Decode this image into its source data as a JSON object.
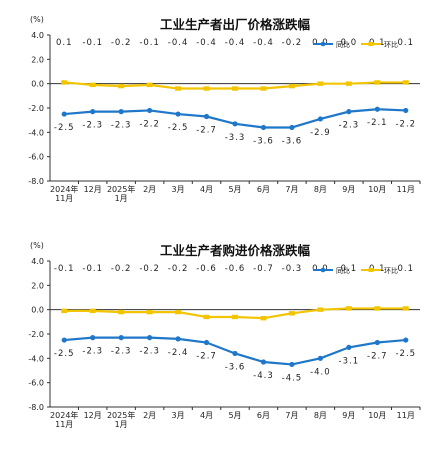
{
  "colors": {
    "yoy": "#1f77c9",
    "mom": "#f2c500",
    "axis": "#333333",
    "grid": "#cfcfcf"
  },
  "chart_data": [
    {
      "type": "line",
      "title": "工业生产者出厂价格涨跌幅",
      "unit": "(%)",
      "ylim": [
        -8.0,
        4.0
      ],
      "yticks": [
        "4.0",
        "2.0",
        "0.0",
        "-2.0",
        "-4.0",
        "-6.0",
        "-8.0"
      ],
      "categories": [
        [
          "2024年",
          "11月"
        ],
        [
          "12月"
        ],
        [
          "2025年",
          "1月"
        ],
        [
          "2月"
        ],
        [
          "3月"
        ],
        [
          "4月"
        ],
        [
          "5月"
        ],
        [
          "6月"
        ],
        [
          "7月"
        ],
        [
          "8月"
        ],
        [
          "9月"
        ],
        [
          "10月"
        ],
        [
          "11月"
        ]
      ],
      "legend": "top-right",
      "series": [
        {
          "name": "同比",
          "color": "#1f77c9",
          "values": [
            -2.5,
            -2.3,
            -2.3,
            -2.2,
            -2.5,
            -2.7,
            -3.3,
            -3.6,
            -3.6,
            -2.9,
            -2.3,
            -2.1,
            -2.2
          ],
          "labels": [
            "-2.5",
            "-2.3",
            "-2.3",
            "-2.2",
            "-2.5",
            "-2.7",
            "-3.3",
            "-3.6",
            "-3.6",
            "-2.9",
            "-2.3",
            "-2.1",
            "-2.2"
          ]
        },
        {
          "name": "环比",
          "color": "#f2c500",
          "values": [
            0.1,
            -0.1,
            -0.2,
            -0.1,
            -0.4,
            -0.4,
            -0.4,
            -0.4,
            -0.2,
            0.0,
            0.0,
            0.1,
            0.1
          ],
          "labels": [
            "0.1",
            "-0.1",
            "-0.2",
            "-0.1",
            "-0.4",
            "-0.4",
            "-0.4",
            "-0.4",
            "-0.2",
            "0.0",
            "0.0",
            "0.1",
            "0.1"
          ]
        }
      ]
    },
    {
      "type": "line",
      "title": "工业生产者购进价格涨跌幅",
      "unit": "(%)",
      "ylim": [
        -8.0,
        4.0
      ],
      "yticks": [
        "4.0",
        "2.0",
        "0.0",
        "-2.0",
        "-4.0",
        "-6.0",
        "-8.0"
      ],
      "categories": [
        [
          "2024年",
          "11月"
        ],
        [
          "12月"
        ],
        [
          "2025年",
          "1月"
        ],
        [
          "2月"
        ],
        [
          "3月"
        ],
        [
          "4月"
        ],
        [
          "5月"
        ],
        [
          "6月"
        ],
        [
          "7月"
        ],
        [
          "8月"
        ],
        [
          "9月"
        ],
        [
          "10月"
        ],
        [
          "11月"
        ]
      ],
      "legend": "top-right",
      "series": [
        {
          "name": "同比",
          "color": "#1f77c9",
          "values": [
            -2.5,
            -2.3,
            -2.3,
            -2.3,
            -2.4,
            -2.7,
            -3.6,
            -4.3,
            -4.5,
            -4.0,
            -3.1,
            -2.7,
            -2.5
          ],
          "labels": [
            "-2.5",
            "-2.3",
            "-2.3",
            "-2.3",
            "-2.4",
            "-2.7",
            "-3.6",
            "-4.3",
            "-4.5",
            "-4.0",
            "-3.1",
            "-2.7",
            "-2.5"
          ]
        },
        {
          "name": "环比",
          "color": "#f2c500",
          "values": [
            -0.1,
            -0.1,
            -0.2,
            -0.2,
            -0.2,
            -0.6,
            -0.6,
            -0.7,
            -0.3,
            0.0,
            0.1,
            0.1,
            0.1
          ],
          "labels": [
            "-0.1",
            "-0.1",
            "-0.2",
            "-0.2",
            "-0.2",
            "-0.6",
            "-0.6",
            "-0.7",
            "-0.3",
            "0.0",
            "0.1",
            "0.1",
            "0.1"
          ]
        }
      ]
    }
  ]
}
